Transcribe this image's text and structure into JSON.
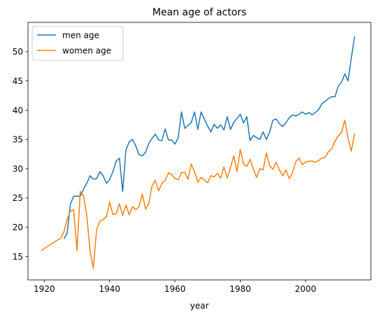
{
  "chart_data": {
    "type": "line",
    "title": "Mean age of actors",
    "xlabel": "year",
    "ylabel": "",
    "xlim": [
      1915,
      2020
    ],
    "ylim": [
      11,
      55
    ],
    "xticks": [
      1920,
      1940,
      1960,
      1980,
      2000
    ],
    "yticks": [
      15,
      20,
      25,
      30,
      35,
      40,
      45,
      50
    ],
    "grid": false,
    "legend_position": "top-left",
    "series": [
      {
        "name": "men age",
        "color": "#1f77b4",
        "points": [
          [
            1926,
            18
          ],
          [
            1927,
            19
          ],
          [
            1928,
            24
          ],
          [
            1929,
            25.3
          ],
          [
            1930,
            25.3
          ],
          [
            1931,
            25.3
          ],
          [
            1932,
            26.5
          ],
          [
            1933,
            27.5
          ],
          [
            1934,
            28.8
          ],
          [
            1935,
            28.2
          ],
          [
            1936,
            28.3
          ],
          [
            1937,
            29.5
          ],
          [
            1938,
            28.8
          ],
          [
            1939,
            27.5
          ],
          [
            1940,
            28.1
          ],
          [
            1941,
            29.5
          ],
          [
            1942,
            31.3
          ],
          [
            1943,
            31.8
          ],
          [
            1944,
            26.1
          ],
          [
            1945,
            33.2
          ],
          [
            1946,
            34.6
          ],
          [
            1947,
            35
          ],
          [
            1948,
            33.9
          ],
          [
            1949,
            32.4
          ],
          [
            1950,
            32.2
          ],
          [
            1951,
            32.8
          ],
          [
            1952,
            34.3
          ],
          [
            1953,
            35.2
          ],
          [
            1954,
            35.9
          ],
          [
            1955,
            34.9
          ],
          [
            1956,
            34.8
          ],
          [
            1957,
            36.8
          ],
          [
            1958,
            34.9
          ],
          [
            1959,
            34.9
          ],
          [
            1960,
            34.2
          ],
          [
            1961,
            35.3
          ],
          [
            1962,
            39.7
          ],
          [
            1963,
            36.9
          ],
          [
            1964,
            37.4
          ],
          [
            1965,
            37.9
          ],
          [
            1966,
            39.7
          ],
          [
            1967,
            36.7
          ],
          [
            1968,
            39.7
          ],
          [
            1969,
            38.5
          ],
          [
            1970,
            37.3
          ],
          [
            1971,
            36.3
          ],
          [
            1972,
            37.6
          ],
          [
            1973,
            36.9
          ],
          [
            1974,
            37.5
          ],
          [
            1975,
            36.6
          ],
          [
            1976,
            38.9
          ],
          [
            1977,
            36.7
          ],
          [
            1978,
            37.9
          ],
          [
            1979,
            38.6
          ],
          [
            1980,
            39.3
          ],
          [
            1981,
            37.8
          ],
          [
            1982,
            38.9
          ],
          [
            1983,
            34.8
          ],
          [
            1984,
            35.7
          ],
          [
            1985,
            35.3
          ],
          [
            1986,
            35
          ],
          [
            1987,
            36.3
          ],
          [
            1988,
            35
          ],
          [
            1989,
            36.3
          ],
          [
            1990,
            38.3
          ],
          [
            1991,
            38.5
          ],
          [
            1992,
            37.7
          ],
          [
            1993,
            37.2
          ],
          [
            1994,
            37.9
          ],
          [
            1995,
            38.7
          ],
          [
            1996,
            39.2
          ],
          [
            1997,
            39
          ],
          [
            1998,
            39.3
          ],
          [
            1999,
            39.7
          ],
          [
            2000,
            39.3
          ],
          [
            2001,
            39.6
          ],
          [
            2002,
            39.2
          ],
          [
            2003,
            39.6
          ],
          [
            2004,
            40.1
          ],
          [
            2005,
            41.1
          ],
          [
            2006,
            41.5
          ],
          [
            2007,
            42
          ],
          [
            2008,
            42.3
          ],
          [
            2009,
            42.3
          ],
          [
            2010,
            44.1
          ],
          [
            2011,
            44.8
          ],
          [
            2012,
            46.2
          ],
          [
            2013,
            45
          ],
          [
            2014,
            48.9
          ],
          [
            2015,
            52.6
          ]
        ]
      },
      {
        "name": "women age",
        "color": "#ff7f0e",
        "points": [
          [
            1919,
            16
          ],
          [
            1924,
            17.8
          ],
          [
            1925,
            18.1
          ],
          [
            1926,
            19.2
          ],
          [
            1927,
            21.3
          ],
          [
            1928,
            22.8
          ],
          [
            1929,
            23
          ],
          [
            1930,
            16
          ],
          [
            1931,
            26.1
          ],
          [
            1932,
            25.4
          ],
          [
            1933,
            22
          ],
          [
            1934,
            16
          ],
          [
            1935,
            13
          ],
          [
            1936,
            19.6
          ],
          [
            1937,
            21
          ],
          [
            1938,
            21.3
          ],
          [
            1939,
            21.8
          ],
          [
            1940,
            24.3
          ],
          [
            1941,
            22.2
          ],
          [
            1942,
            22.3
          ],
          [
            1943,
            24
          ],
          [
            1944,
            22
          ],
          [
            1945,
            23.8
          ],
          [
            1946,
            22.1
          ],
          [
            1947,
            23.5
          ],
          [
            1948,
            23
          ],
          [
            1949,
            23.5
          ],
          [
            1950,
            25.7
          ],
          [
            1951,
            23.1
          ],
          [
            1952,
            24.1
          ],
          [
            1953,
            27.1
          ],
          [
            1954,
            28
          ],
          [
            1955,
            26.2
          ],
          [
            1956,
            27.5
          ],
          [
            1957,
            28
          ],
          [
            1958,
            29.3
          ],
          [
            1959,
            29
          ],
          [
            1960,
            28.3
          ],
          [
            1961,
            28.1
          ],
          [
            1962,
            29.3
          ],
          [
            1963,
            29.4
          ],
          [
            1964,
            28.2
          ],
          [
            1965,
            30.8
          ],
          [
            1966,
            29.5
          ],
          [
            1967,
            27.7
          ],
          [
            1968,
            28.5
          ],
          [
            1969,
            28.1
          ],
          [
            1970,
            27.6
          ],
          [
            1971,
            28.8
          ],
          [
            1972,
            28.6
          ],
          [
            1973,
            29.2
          ],
          [
            1974,
            28.4
          ],
          [
            1975,
            30.3
          ],
          [
            1976,
            28.4
          ],
          [
            1977,
            30.2
          ],
          [
            1978,
            32.2
          ],
          [
            1979,
            29.5
          ],
          [
            1980,
            33.3
          ],
          [
            1981,
            30.8
          ],
          [
            1982,
            30.4
          ],
          [
            1983,
            31.6
          ],
          [
            1984,
            30
          ],
          [
            1985,
            28.5
          ],
          [
            1986,
            30
          ],
          [
            1987,
            29.8
          ],
          [
            1988,
            32.7
          ],
          [
            1989,
            30.5
          ],
          [
            1990,
            29.9
          ],
          [
            1991,
            31.1
          ],
          [
            1992,
            29.8
          ],
          [
            1993,
            28.8
          ],
          [
            1994,
            29.8
          ],
          [
            1995,
            28.3
          ],
          [
            1996,
            29.3
          ],
          [
            1997,
            31.2
          ],
          [
            1998,
            31.8
          ],
          [
            1999,
            30.7
          ],
          [
            2000,
            31.1
          ],
          [
            2001,
            31.3
          ],
          [
            2002,
            31.3
          ],
          [
            2003,
            31.1
          ],
          [
            2004,
            31.4
          ],
          [
            2005,
            31.8
          ],
          [
            2006,
            32
          ],
          [
            2007,
            32.9
          ],
          [
            2008,
            33.4
          ],
          [
            2009,
            34.7
          ],
          [
            2010,
            35.6
          ],
          [
            2011,
            36.2
          ],
          [
            2012,
            38.3
          ],
          [
            2013,
            35.2
          ],
          [
            2014,
            33
          ],
          [
            2015,
            36
          ]
        ]
      }
    ]
  }
}
